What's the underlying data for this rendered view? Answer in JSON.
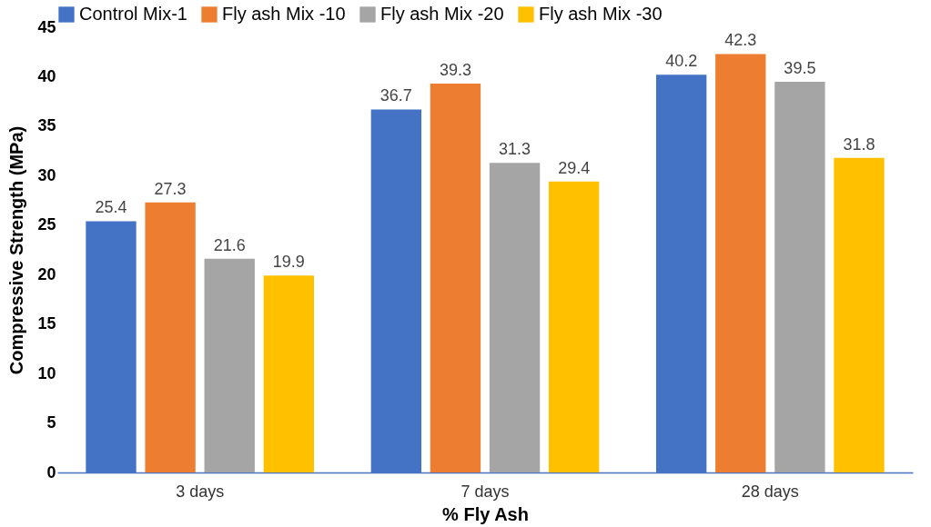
{
  "chart_data": {
    "type": "bar",
    "xlabel": "% Fly Ash",
    "ylabel": "Compressive Strength (MPa)",
    "categories": [
      "3 days",
      "7 days",
      "28 days"
    ],
    "series": [
      {
        "name": "Control Mix-1",
        "color": "#4472c4",
        "values": [
          25.4,
          36.7,
          40.2
        ]
      },
      {
        "name": "Fly ash Mix -10",
        "color": "#ed7d31",
        "values": [
          27.3,
          39.3,
          42.3
        ]
      },
      {
        "name": "Fly ash Mix -20",
        "color": "#a5a5a5",
        "values": [
          21.6,
          31.3,
          39.5
        ]
      },
      {
        "name": "Fly ash Mix -30",
        "color": "#ffc000",
        "values": [
          19.9,
          29.4,
          31.8
        ]
      }
    ],
    "ylim": [
      0,
      45
    ],
    "yticks": [
      0,
      5,
      10,
      15,
      20,
      25,
      30,
      35,
      40,
      45
    ],
    "legend": "top",
    "data_labels": true
  }
}
